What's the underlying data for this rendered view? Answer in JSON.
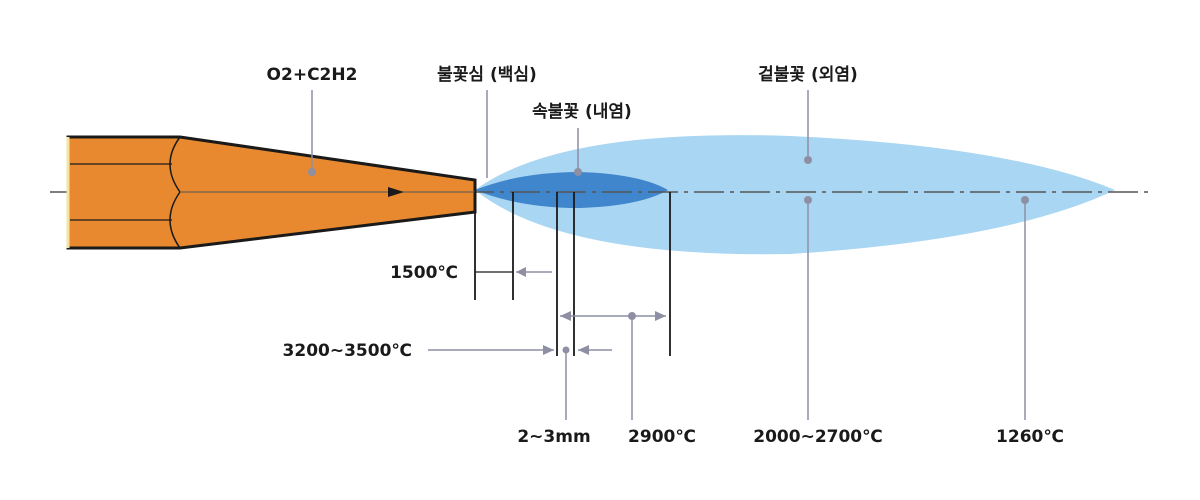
{
  "labels": {
    "gas_mix": "O2+C2H2",
    "inner_cone": "불꽃심 (백심)",
    "inner_flame": "속불꽃 (내염)",
    "outer_flame": "겉불꽃 (외염)",
    "temp_1500": "1500℃",
    "temp_3200_3500": "3200~3500℃",
    "dist_2_3mm": "2~3mm",
    "temp_2900": "2900℃",
    "temp_2000_2700": "2000~2700℃",
    "temp_1260": "1260℃"
  },
  "colors": {
    "nozzle": "#e8892f",
    "nozzle_outline": "#1a1a1a",
    "outer_flame": "#a9d6f2",
    "inner_flame": "#3f86cc",
    "pointer": "#8e8fa3",
    "axis": "#555555"
  }
}
